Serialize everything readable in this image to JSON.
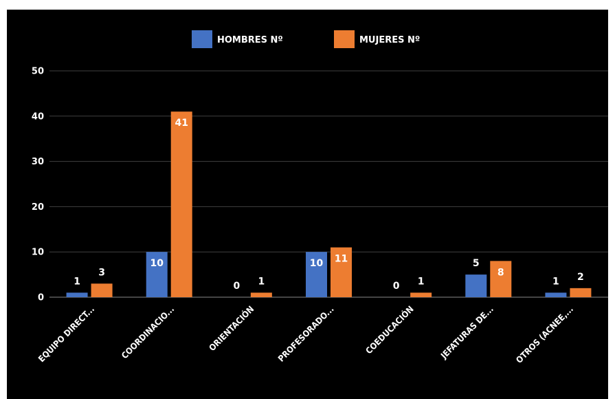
{
  "chart_data": {
    "type": "bar",
    "categories": [
      "EQUIPO DIRECT...",
      "COORDINACIO...",
      "ORIENTACIÓN",
      "PROFESORADO...",
      "COEDUCACIÓN",
      "JEFATURAS DE...",
      "OTROS (ACNEE,..."
    ],
    "series": [
      {
        "name": "HOMBRES Nº",
        "color": "#4472c4",
        "values": [
          1,
          10,
          0,
          10,
          0,
          5,
          1
        ]
      },
      {
        "name": "MUJERES Nº",
        "color": "#ed7d31",
        "values": [
          3,
          41,
          1,
          11,
          1,
          8,
          2
        ]
      }
    ],
    "yticks": [
      "0",
      "10",
      "20",
      "30",
      "40",
      "50"
    ],
    "ylim": [
      0,
      50
    ],
    "grid": true,
    "legend": "top-center",
    "data_labels": true,
    "background": "#000000",
    "grid_color": "#404040"
  }
}
